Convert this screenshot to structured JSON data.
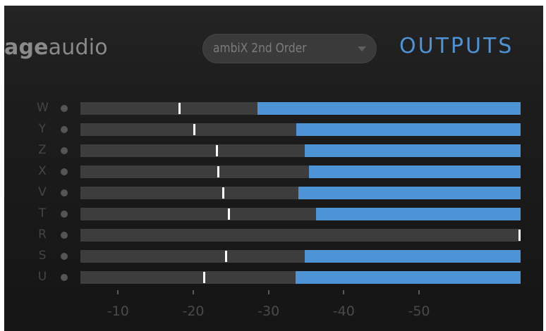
{
  "header": {
    "brand_bold": "age",
    "brand_light": "audio",
    "format_select": {
      "selected": "ambiX 2nd Order"
    },
    "section_title": "OUTPUTS"
  },
  "colors": {
    "accent": "#4d93d6",
    "track": "#3d3d3d",
    "peak": "#ffffff",
    "label": "#454545"
  },
  "meter": {
    "min_db": -5,
    "max_db": -63.5,
    "scale_ticks": [
      "-10",
      "-20",
      "-30",
      "-40",
      "-50"
    ],
    "scale_tick_values": [
      -10,
      -20,
      -30,
      -40,
      -50
    ],
    "channels": [
      {
        "label": "W",
        "peak_db": -18.0,
        "level_db": -28.5
      },
      {
        "label": "Y",
        "peak_db": -20.0,
        "level_db": -33.7
      },
      {
        "label": "Z",
        "peak_db": -23.0,
        "level_db": -34.8
      },
      {
        "label": "X",
        "peak_db": -23.2,
        "level_db": -35.4
      },
      {
        "label": "V",
        "peak_db": -23.8,
        "level_db": -34.0
      },
      {
        "label": "T",
        "peak_db": -24.6,
        "level_db": -36.3
      },
      {
        "label": "R",
        "peak_db": -63.3,
        "level_db": null
      },
      {
        "label": "S",
        "peak_db": -24.2,
        "level_db": -34.8
      },
      {
        "label": "U",
        "peak_db": -21.3,
        "level_db": -33.6
      }
    ]
  }
}
